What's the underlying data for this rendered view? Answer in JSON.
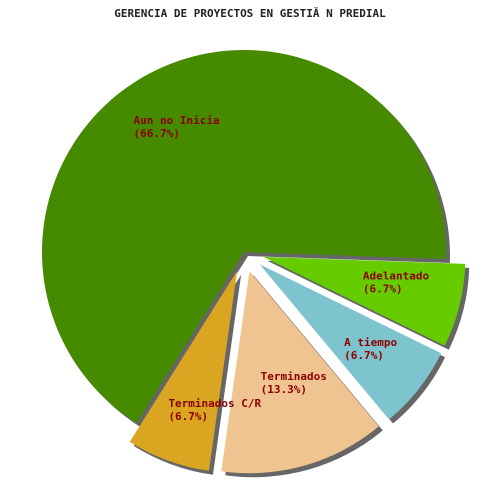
{
  "chart_data": {
    "type": "pie",
    "title": "GERENCIA DE PROYECTOS EN GESTIĂ N PREDIAL",
    "slices": [
      {
        "label": "Aun no Inicia",
        "value": 66.7,
        "pct_text": "(66.7%)",
        "color": "#468a00"
      },
      {
        "label": "Terminados C/R",
        "value": 6.7,
        "pct_text": "(6.7%)",
        "color": "#daa520"
      },
      {
        "label": "Terminados",
        "value": 13.3,
        "pct_text": "(13.3%)",
        "color": "#f0c490"
      },
      {
        "label": "A tiempo",
        "value": 6.7,
        "pct_text": "(6.7%)",
        "color": "#7ec4ce"
      },
      {
        "label": "Adelantado",
        "value": 6.7,
        "pct_text": "(6.7%)",
        "color": "#66cc00"
      }
    ],
    "shadow_color": "#666666",
    "label_color": "#8b0000"
  }
}
